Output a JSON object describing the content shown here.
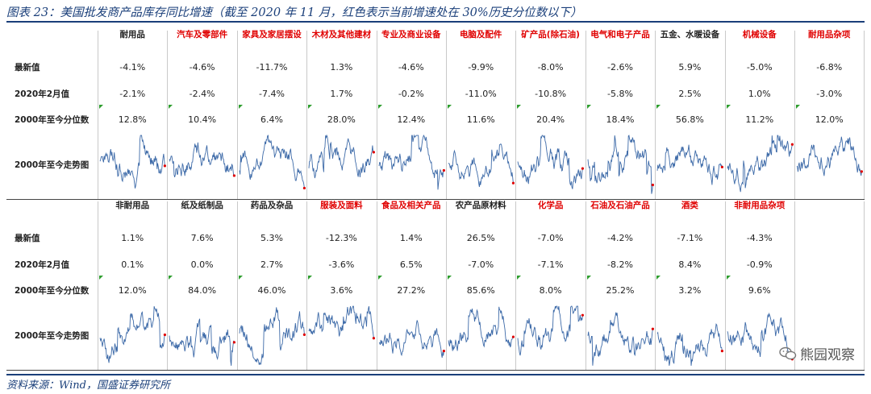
{
  "title": "图表 23：美国批发商产品库存同比增速（截至 2020 年 11 月，红色表示当前增速处在 30%历史分位数以下）",
  "source": "资料来源：Wind，国盛证券研究所",
  "watermark": "熊园观察",
  "colors": {
    "accent": "#1a3f7a",
    "red_header": "#e00000",
    "spark_line": "#3d6aa8",
    "flag": "#2f9e2f"
  },
  "row_labels": [
    "最新值",
    "2020年2月值",
    "2000年至今分位数",
    "2000年至今走势图"
  ],
  "table1": {
    "headers": [
      {
        "text": "耐用品",
        "red": false
      },
      {
        "text": "汽车及零部件",
        "red": true
      },
      {
        "text": "家具及家居摆设",
        "red": true
      },
      {
        "text": "木材及其他建材",
        "red": true
      },
      {
        "text": "专业及商业设备",
        "red": true
      },
      {
        "text": "电脑及配件",
        "red": true
      },
      {
        "text": "矿产品(除石油)",
        "red": true
      },
      {
        "text": "电气和电子产品",
        "red": true
      },
      {
        "text": "五金、水暖设备",
        "red": false
      },
      {
        "text": "机械设备",
        "red": true
      },
      {
        "text": "耐用品杂项",
        "red": true
      }
    ],
    "latest": [
      "-4.1%",
      "-4.6%",
      "-11.7%",
      "1.3%",
      "-4.6%",
      "-9.9%",
      "-8.0%",
      "-2.6%",
      "5.9%",
      "-5.0%",
      "-6.8%"
    ],
    "feb2020": [
      "-2.1%",
      "-2.4%",
      "-7.4%",
      "1.7%",
      "-0.2%",
      "-11.0%",
      "-10.8%",
      "-5.8%",
      "2.5%",
      "1.0%",
      "-3.0%"
    ],
    "percentile": [
      "12.8%",
      "10.4%",
      "6.4%",
      "28.0%",
      "12.4%",
      "11.6%",
      "20.4%",
      "18.4%",
      "56.8%",
      "11.2%",
      "12.0%"
    ]
  },
  "table2": {
    "headers": [
      {
        "text": "非耐用品",
        "red": false
      },
      {
        "text": "纸及纸制品",
        "red": false
      },
      {
        "text": "药品及杂品",
        "red": false
      },
      {
        "text": "服装及面料",
        "red": true
      },
      {
        "text": "食品及相关产品",
        "red": true
      },
      {
        "text": "农产品原材料",
        "red": false
      },
      {
        "text": "化学品",
        "red": true
      },
      {
        "text": "石油及石油产品",
        "red": true
      },
      {
        "text": "酒类",
        "red": true
      },
      {
        "text": "非耐用品杂项",
        "red": true
      }
    ],
    "latest": [
      "1.1%",
      "7.6%",
      "5.3%",
      "-12.3%",
      "1.4%",
      "26.5%",
      "-7.0%",
      "-4.2%",
      "-7.1%",
      "-4.3%"
    ],
    "feb2020": [
      "0.1%",
      "0.0%",
      "2.7%",
      "-3.6%",
      "6.5%",
      "-7.0%",
      "-7.1%",
      "-8.2%",
      "8.4%",
      "-0.9%"
    ],
    "percentile": [
      "12.0%",
      "84.0%",
      "46.0%",
      "3.6%",
      "27.2%",
      "85.6%",
      "8.0%",
      "25.2%",
      "3.2%",
      "9.6%"
    ]
  }
}
